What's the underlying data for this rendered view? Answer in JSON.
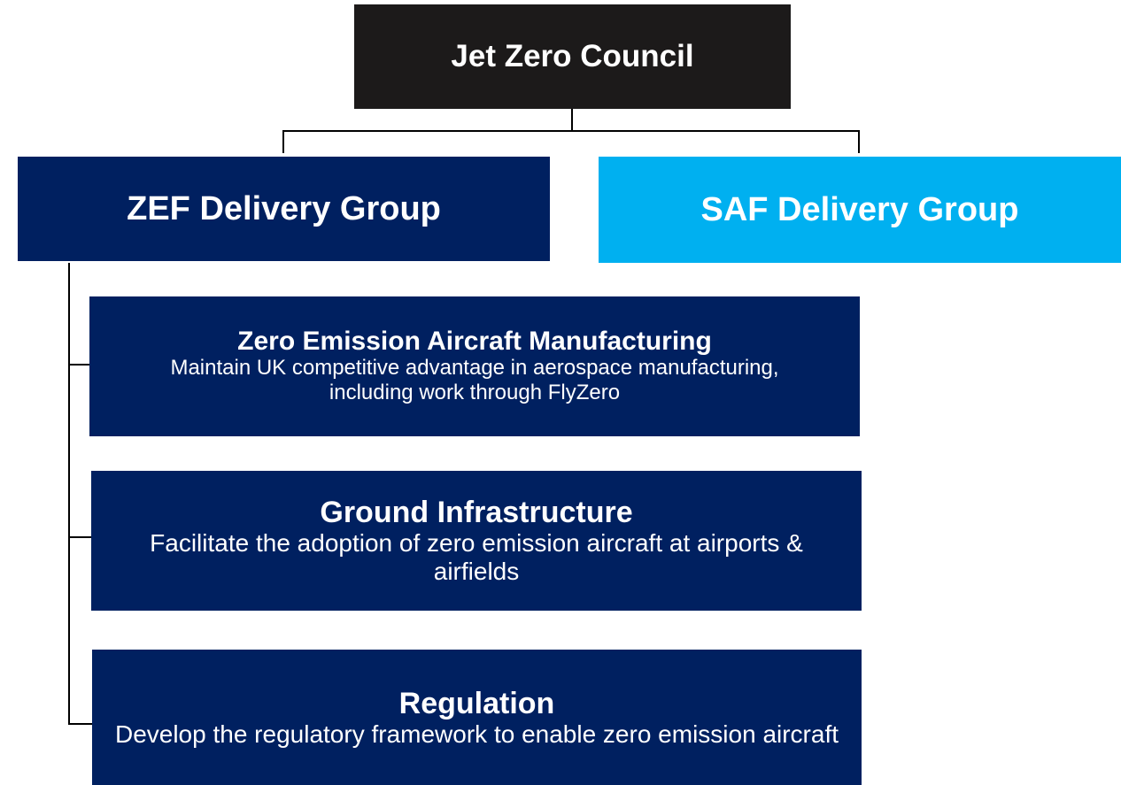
{
  "root": {
    "title": "Jet Zero Council"
  },
  "groups": [
    {
      "title": "ZEF Delivery Group"
    },
    {
      "title": "SAF Delivery Group"
    }
  ],
  "workstreams": [
    {
      "title": "Zero Emission Aircraft Manufacturing",
      "description": "Maintain UK competitive advantage in aerospace manufacturing, including work through FlyZero"
    },
    {
      "title": "Ground Infrastructure",
      "description": "Facilitate the adoption of zero emission aircraft at airports & airfields"
    },
    {
      "title": "Regulation",
      "description": "Develop the regulatory framework to enable zero emission aircraft"
    }
  ]
}
